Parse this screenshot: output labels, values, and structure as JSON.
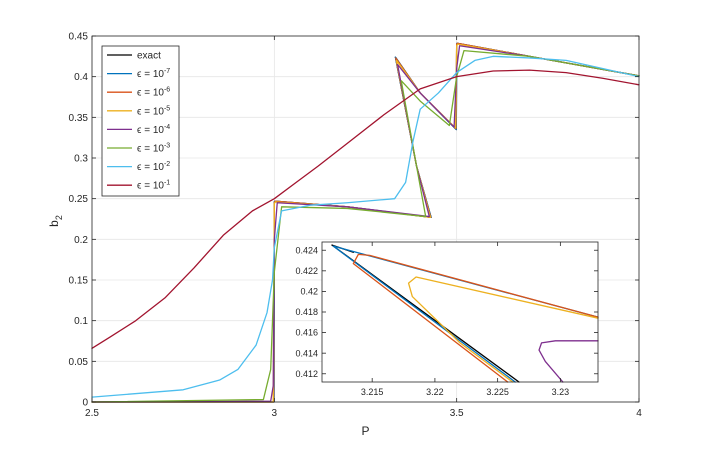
{
  "chart_data": [
    {
      "type": "line",
      "title": "",
      "xlabel": "P",
      "ylabel": "b",
      "ylabel_sub": "2",
      "xlim": [
        2.5,
        4
      ],
      "ylim": [
        0,
        0.45
      ],
      "xticks": [
        2.5,
        3,
        3.5,
        4
      ],
      "xtick_labels": [
        "2.5",
        "3",
        "3.5",
        "4"
      ],
      "yticks": [
        0,
        0.05,
        0.1,
        0.15,
        0.2,
        0.25,
        0.3,
        0.35,
        0.4,
        0.45
      ],
      "ytick_labels": [
        "0",
        "0.05",
        "0.1",
        "0.15",
        "0.2",
        "0.25",
        "0.3",
        "0.35",
        "0.4",
        "0.45"
      ],
      "grid": true,
      "legend_position": "top-left",
      "series": [
        {
          "name": "exact",
          "legend_label": "exact",
          "color": "#000000",
          "x": [
            2.5,
            2.999,
            3.0,
            3.001,
            3.2,
            3.43,
            3.39,
            3.332,
            3.4,
            3.499,
            3.5,
            3.501,
            3.7,
            4.0
          ],
          "y": [
            0,
            0,
            0.246,
            0.247,
            0.24,
            0.227,
            0.29,
            0.424,
            0.38,
            0.335,
            0.44,
            0.441,
            0.425,
            0.401
          ]
        },
        {
          "name": "e-7",
          "legend_base": "ϵ = 10",
          "legend_exp": "-7",
          "color": "#0072BD",
          "x": [
            2.5,
            2.999,
            3.0,
            3.001,
            3.2,
            3.43,
            3.39,
            3.332,
            3.4,
            3.499,
            3.5,
            3.501,
            3.7,
            4.0
          ],
          "y": [
            0,
            0,
            0.246,
            0.247,
            0.24,
            0.227,
            0.29,
            0.424,
            0.38,
            0.335,
            0.44,
            0.441,
            0.425,
            0.401
          ]
        },
        {
          "name": "e-6",
          "legend_base": "ϵ = 10",
          "legend_exp": "-6",
          "color": "#D95319",
          "x": [
            2.5,
            2.998,
            3.0,
            3.002,
            3.2,
            3.429,
            3.39,
            3.333,
            3.4,
            3.498,
            3.5,
            3.502,
            3.7,
            4.0
          ],
          "y": [
            0,
            0,
            0.245,
            0.247,
            0.24,
            0.227,
            0.29,
            0.423,
            0.38,
            0.336,
            0.44,
            0.441,
            0.425,
            0.401
          ]
        },
        {
          "name": "e-5",
          "legend_base": "ϵ = 10",
          "legend_exp": "-5",
          "color": "#EDB120",
          "x": [
            2.5,
            2.997,
            3.0,
            3.003,
            3.2,
            3.428,
            3.39,
            3.335,
            3.4,
            3.497,
            3.5,
            3.503,
            3.7,
            4.0
          ],
          "y": [
            0,
            0,
            0.244,
            0.246,
            0.24,
            0.227,
            0.29,
            0.42,
            0.38,
            0.337,
            0.438,
            0.44,
            0.425,
            0.401
          ]
        },
        {
          "name": "e-4",
          "legend_base": "ϵ = 10",
          "legend_exp": "-4",
          "color": "#7E2F8E",
          "x": [
            2.5,
            2.99,
            2.997,
            3.0,
            3.008,
            3.2,
            3.425,
            3.39,
            3.338,
            3.4,
            3.493,
            3.5,
            3.508,
            3.7,
            4.0
          ],
          "y": [
            0,
            0.001,
            0.02,
            0.2,
            0.245,
            0.24,
            0.228,
            0.29,
            0.415,
            0.38,
            0.338,
            0.41,
            0.438,
            0.425,
            0.401
          ]
        },
        {
          "name": "e-3",
          "legend_base": "ϵ = 10",
          "legend_exp": "-3",
          "color": "#77AC30",
          "x": [
            2.5,
            2.97,
            2.99,
            3.0,
            3.02,
            3.2,
            3.415,
            3.39,
            3.348,
            3.4,
            3.48,
            3.5,
            3.52,
            3.7,
            4.0
          ],
          "y": [
            0,
            0.003,
            0.04,
            0.16,
            0.24,
            0.238,
            0.228,
            0.29,
            0.395,
            0.37,
            0.34,
            0.4,
            0.432,
            0.425,
            0.401
          ]
        },
        {
          "name": "e-2",
          "legend_base": "ϵ = 10",
          "legend_exp": "-2",
          "color": "#4DBEEE",
          "x": [
            2.5,
            2.75,
            2.85,
            2.9,
            2.95,
            2.98,
            2.995,
            3.0,
            3.02,
            3.1,
            3.2,
            3.33,
            3.36,
            3.38,
            3.4,
            3.45,
            3.5,
            3.55,
            3.6,
            3.7,
            3.8,
            3.9,
            4.0
          ],
          "y": [
            0.006,
            0.015,
            0.027,
            0.04,
            0.07,
            0.11,
            0.15,
            0.19,
            0.235,
            0.242,
            0.245,
            0.25,
            0.27,
            0.32,
            0.36,
            0.38,
            0.405,
            0.42,
            0.425,
            0.423,
            0.42,
            0.41,
            0.4
          ]
        },
        {
          "name": "e-1",
          "legend_base": "ϵ = 10",
          "legend_exp": "-1",
          "color": "#A2142F",
          "x": [
            2.5,
            2.55,
            2.62,
            2.7,
            2.78,
            2.86,
            2.94,
            3.0,
            3.06,
            3.12,
            3.2,
            3.3,
            3.4,
            3.5,
            3.6,
            3.7,
            3.8,
            3.9,
            4.0
          ],
          "y": [
            0.066,
            0.08,
            0.1,
            0.128,
            0.165,
            0.205,
            0.235,
            0.25,
            0.27,
            0.29,
            0.318,
            0.353,
            0.385,
            0.4,
            0.407,
            0.408,
            0.405,
            0.398,
            0.39
          ]
        }
      ]
    },
    {
      "type": "line",
      "title": "",
      "xlabel": "",
      "ylabel": "",
      "xlim": [
        3.211,
        3.233
      ],
      "ylim": [
        0.4112,
        0.4248
      ],
      "xticks": [
        3.215,
        3.22,
        3.225,
        3.23
      ],
      "xtick_labels": [
        "3.215",
        "3.22",
        "3.225",
        "3.23"
      ],
      "yticks": [
        0.412,
        0.414,
        0.416,
        0.418,
        0.42,
        0.422,
        0.424
      ],
      "ytick_labels": [
        "0.412",
        "0.414",
        "0.416",
        "0.418",
        "0.42",
        "0.422",
        "0.424"
      ],
      "grid": false,
      "series": [
        {
          "name": "exact-lower",
          "color": "#000000",
          "x": [
            3.2118,
            3.2267
          ],
          "y": [
            0.4245,
            0.4112
          ]
        },
        {
          "name": "exact-upper",
          "color": "#000000",
          "x": [
            3.2118,
            3.2135
          ],
          "y": [
            0.4245,
            0.4238
          ]
        },
        {
          "name": "e-7-lower",
          "color": "#0072BD",
          "x": [
            3.2119,
            3.2264
          ],
          "y": [
            0.4244,
            0.4112
          ]
        },
        {
          "name": "e-7-upper",
          "color": "#0072BD",
          "x": [
            3.2119,
            3.233
          ],
          "y": [
            0.4244,
            0.4175
          ]
        },
        {
          "name": "e-6",
          "color": "#D95319",
          "x": [
            3.2258,
            3.2135,
            3.2139,
            3.2148,
            3.233
          ],
          "y": [
            0.4112,
            0.4227,
            0.4236,
            0.4235,
            0.4175
          ]
        },
        {
          "name": "e-5",
          "color": "#EDB120",
          "x": [
            3.2262,
            3.222,
            3.2182,
            3.2179,
            3.2185,
            3.233
          ],
          "y": [
            0.4112,
            0.415,
            0.4195,
            0.4208,
            0.4214,
            0.4174
          ]
        },
        {
          "name": "e-4",
          "color": "#7E2F8E",
          "x": [
            3.2302,
            3.2288,
            3.2283,
            3.2285,
            3.2296,
            3.233
          ],
          "y": [
            0.4112,
            0.4132,
            0.4143,
            0.415,
            0.4152,
            0.4152
          ]
        }
      ]
    }
  ]
}
